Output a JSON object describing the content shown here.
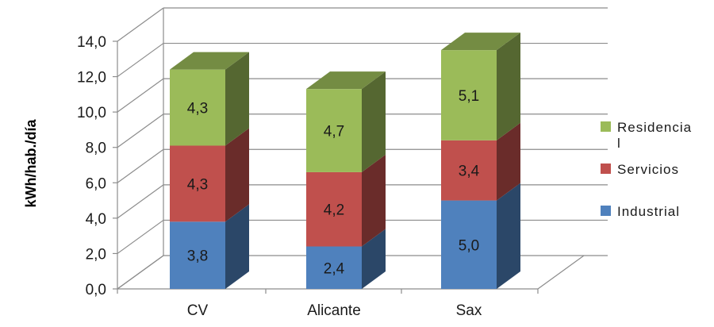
{
  "chart_data": {
    "type": "bar",
    "stacked": true,
    "three_d": true,
    "categories": [
      "CV",
      "Alicante",
      "Sax"
    ],
    "series": [
      {
        "name": "Industrial",
        "values": [
          3.8,
          2.4,
          5.0
        ],
        "color": "#4F81BD",
        "data_labels": [
          "3,8",
          "2,4",
          "5,0"
        ]
      },
      {
        "name": "Servicios",
        "values": [
          4.3,
          4.2,
          3.4
        ],
        "color": "#C0504D",
        "data_labels": [
          "4,3",
          "4,2",
          "3,4"
        ]
      },
      {
        "name": "Residencial",
        "values": [
          4.3,
          4.7,
          5.1
        ],
        "color": "#9BBB59",
        "data_labels": [
          "4,3",
          "4,7",
          "5,1"
        ]
      }
    ],
    "legend_labels": [
      "Residencia\nl",
      "Servicios",
      "Industrial"
    ],
    "ylabel": "kWh/hab./día",
    "xlabel": "",
    "ylim": [
      0,
      14
    ],
    "yticks": [
      0,
      2,
      4,
      6,
      8,
      10,
      12,
      14
    ],
    "ytick_labels": [
      "0,0",
      "2,0",
      "4,0",
      "6,0",
      "8,0",
      "10,0",
      "12,0",
      "14,0"
    ],
    "grid": true,
    "legend_position": "right"
  }
}
